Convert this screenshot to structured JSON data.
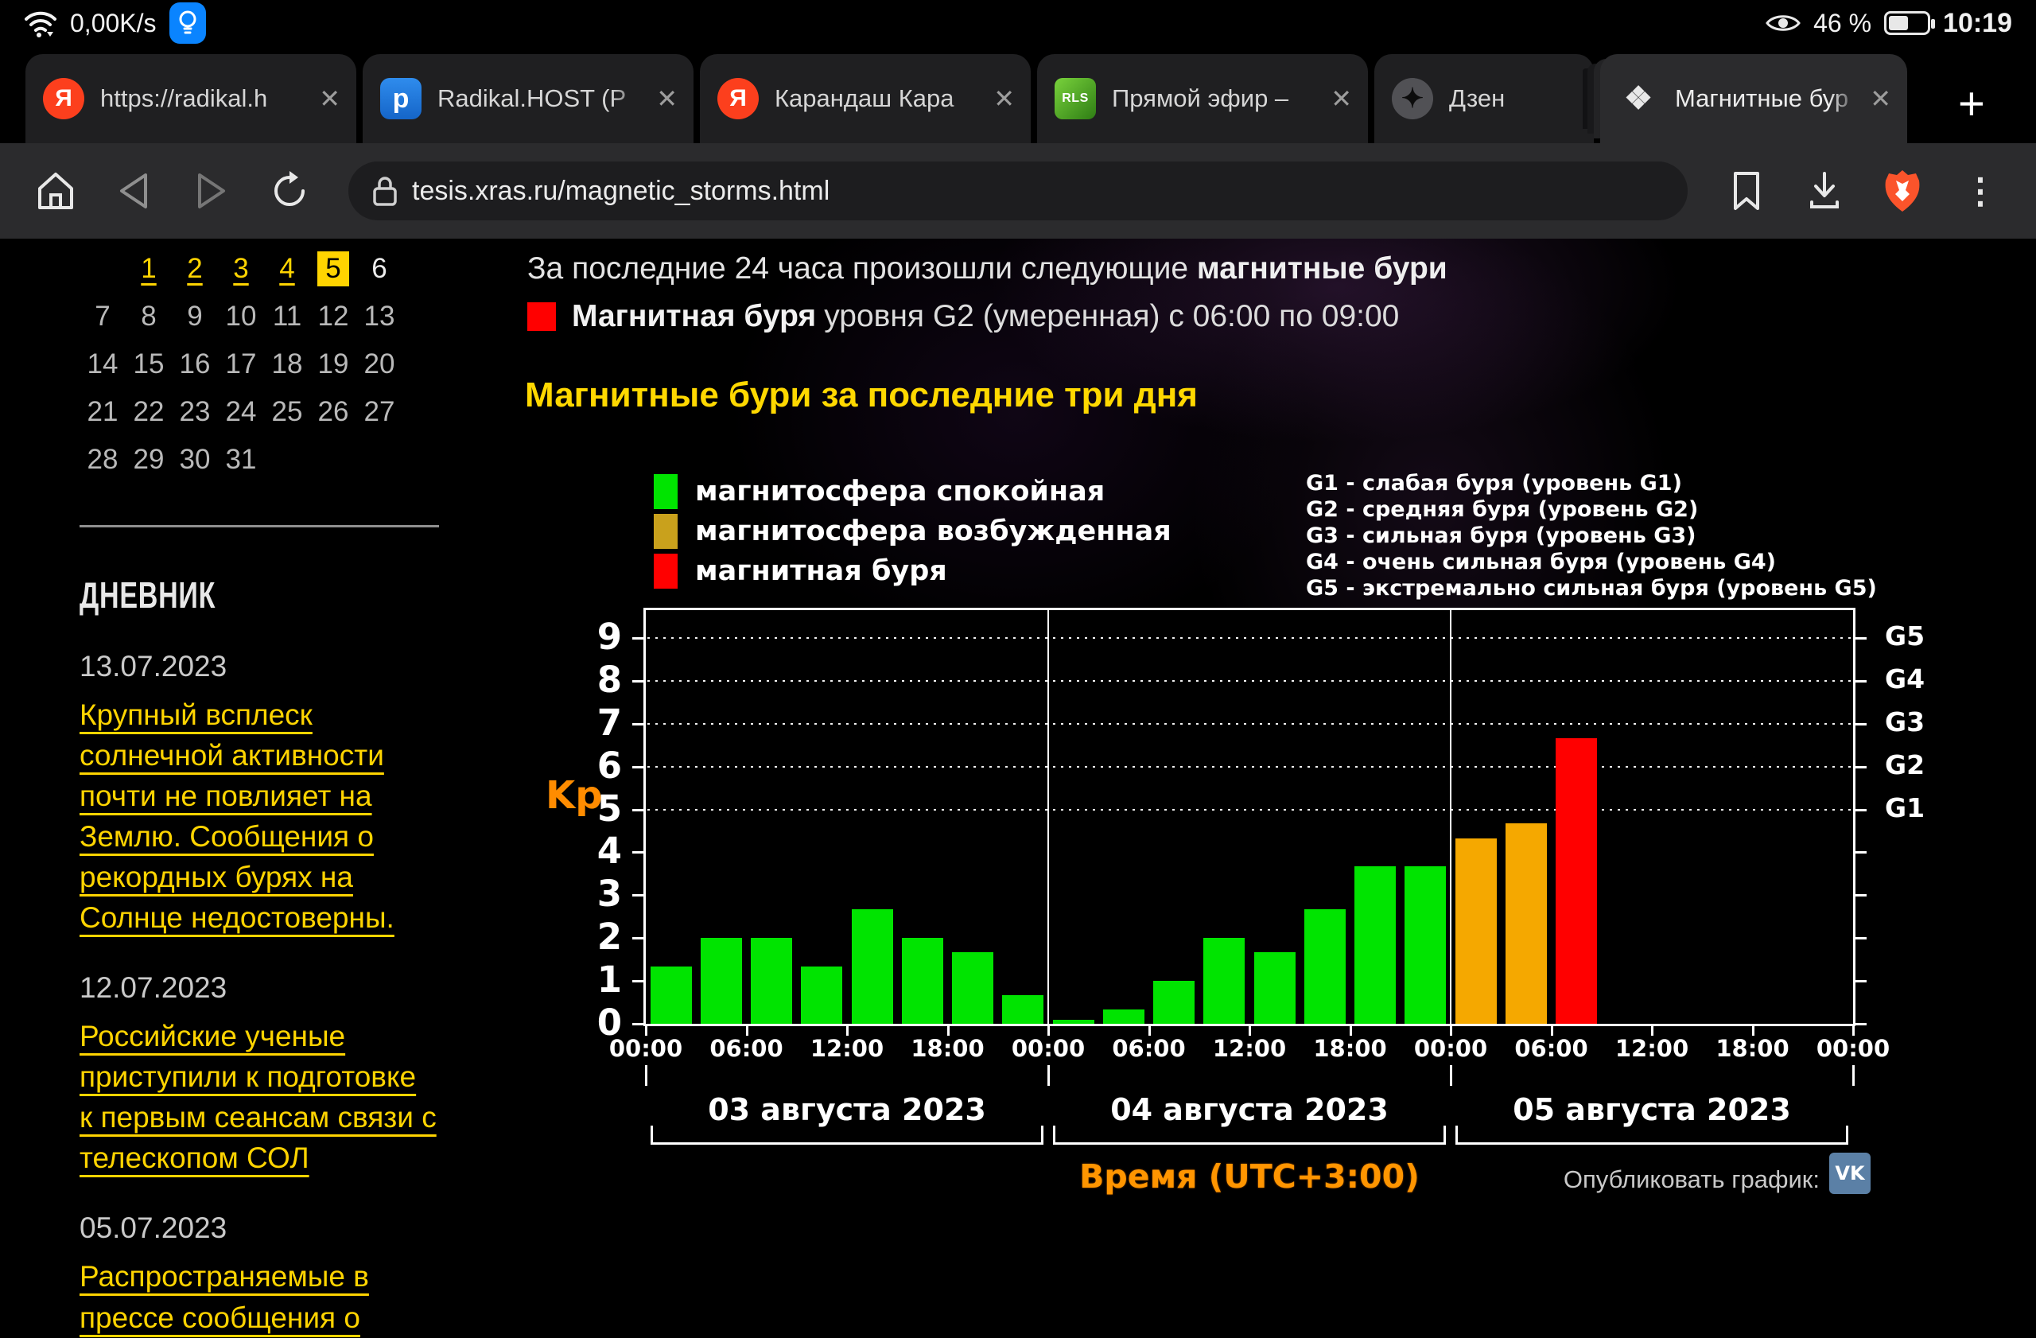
{
  "status_bar": {
    "network_speed": "0,00K/s",
    "battery_percent": "46 %",
    "time": "10:19"
  },
  "tab_strip": {
    "tabs": [
      {
        "label": "https://radikal.h",
        "icon": "yandex",
        "icon_text": "Я",
        "closable": true,
        "active": false
      },
      {
        "label": "Radikal.HOST (P",
        "icon": "radikal",
        "icon_text": "p",
        "closable": true,
        "active": false
      },
      {
        "label": "Карандаш Кара",
        "icon": "yandex",
        "icon_text": "Я",
        "closable": true,
        "active": false
      },
      {
        "label": "Прямой эфир –",
        "icon": "rls",
        "icon_text": "RLS",
        "closable": true,
        "active": false
      },
      {
        "label": "Дзен",
        "icon": "dzen",
        "icon_text": "✦",
        "closable": false,
        "active": false
      },
      {
        "label": "Магнитные бур",
        "icon": "tesis",
        "icon_text": "❖",
        "closable": true,
        "active": true
      }
    ],
    "close_glyph": "✕",
    "new_tab_label": "+"
  },
  "toolbar": {
    "url": "tesis.xras.ru/magnetic_storms.html",
    "menu_glyph": "⋮"
  },
  "sidebar": {
    "calendar": {
      "rows": [
        [
          "",
          "1",
          "2",
          "3",
          "4",
          "5",
          "6"
        ],
        [
          "7",
          "8",
          "9",
          "10",
          "11",
          "12",
          "13"
        ],
        [
          "14",
          "15",
          "16",
          "17",
          "18",
          "19",
          "20"
        ],
        [
          "21",
          "22",
          "23",
          "24",
          "25",
          "26",
          "27"
        ],
        [
          "28",
          "29",
          "30",
          "31",
          "",
          "",
          ""
        ]
      ],
      "link_days": [
        "1",
        "2",
        "3",
        "4"
      ],
      "selected_day": "5",
      "bright_days": [
        "6"
      ]
    },
    "diary": {
      "title": "ДНЕВНИК",
      "entries": [
        {
          "date": "13.07.2023",
          "link_lines": [
            "Крупный всплеск",
            "солнечной активности",
            "почти не повлияет на",
            "Землю. Сообщения о",
            "рекордных бурях на",
            "Солнце недостоверны."
          ]
        },
        {
          "date": "12.07.2023",
          "link_lines": [
            "Российские ученые",
            "приступили к подготовке",
            "к первым сеансам связи с",
            "телескопом СОЛ"
          ]
        },
        {
          "date": "05.07.2023",
          "link_lines": [
            "Распространяемые в",
            "прессе сообщения о"
          ]
        }
      ]
    }
  },
  "main": {
    "intro_text": "За последние 24 часа произошли следующие ",
    "intro_bold": "магнитные бури",
    "storm_name": "Магнитная буря",
    "storm_rest": " уровня G2 (умеренная) с 06:00 по 09:00",
    "heading": "Магнитные бури за последние три дня",
    "publish_label": "Опубликовать график:",
    "vk_label": "VK"
  },
  "chart_data": {
    "type": "bar",
    "title": "Магнитные бури за последние три дня",
    "ylabel": "Kp",
    "xlabel": "Время (UTC+3:00)",
    "ylim": [
      0,
      9.65
    ],
    "yticks": [
      0,
      1,
      2,
      3,
      4,
      5,
      6,
      7,
      8,
      9
    ],
    "x_tick_labels": [
      "00:00",
      "06:00",
      "12:00",
      "18:00"
    ],
    "x_axis_end_label": "00:00",
    "grid_levels": [
      {
        "kp": 5,
        "label": "G1"
      },
      {
        "kp": 6,
        "label": "G2"
      },
      {
        "kp": 7,
        "label": "G3"
      },
      {
        "kp": 8,
        "label": "G4"
      },
      {
        "kp": 9,
        "label": "G5"
      }
    ],
    "slots_per_day": 8,
    "days": [
      {
        "date": "03 августа 2023",
        "values": [
          1.33,
          2,
          2,
          1.33,
          2.67,
          2,
          1.67,
          0.67
        ]
      },
      {
        "date": "04 августа 2023",
        "values": [
          0.1,
          0.33,
          1,
          2,
          1.67,
          2.67,
          3.67,
          3.67
        ]
      },
      {
        "date": "05 августа 2023",
        "values": [
          4.33,
          4.67,
          6.67,
          null,
          null,
          null,
          null,
          null
        ]
      }
    ],
    "colors": {
      "quiet": "#00e400",
      "excited": "#f5a800",
      "storm": "#ff0000"
    },
    "thresholds": {
      "excited_min": 4,
      "storm_min": 5
    },
    "legend": [
      {
        "color": "#00e400",
        "label": "магнитосфера спокойная"
      },
      {
        "color": "#c9a11c",
        "label": "магнитосфера возбужденная"
      },
      {
        "color": "#ff0000",
        "label": "магнитная буря"
      }
    ],
    "g_legend": [
      "G1 - слабая буря (уровень G1)",
      "G2 - средняя буря (уровень G2)",
      "G3 - сильная буря (уровень G3)",
      "G4 - очень сильная буря (уровень G4)",
      "G5 - экстремально сильная буря (уровень G5)"
    ]
  }
}
